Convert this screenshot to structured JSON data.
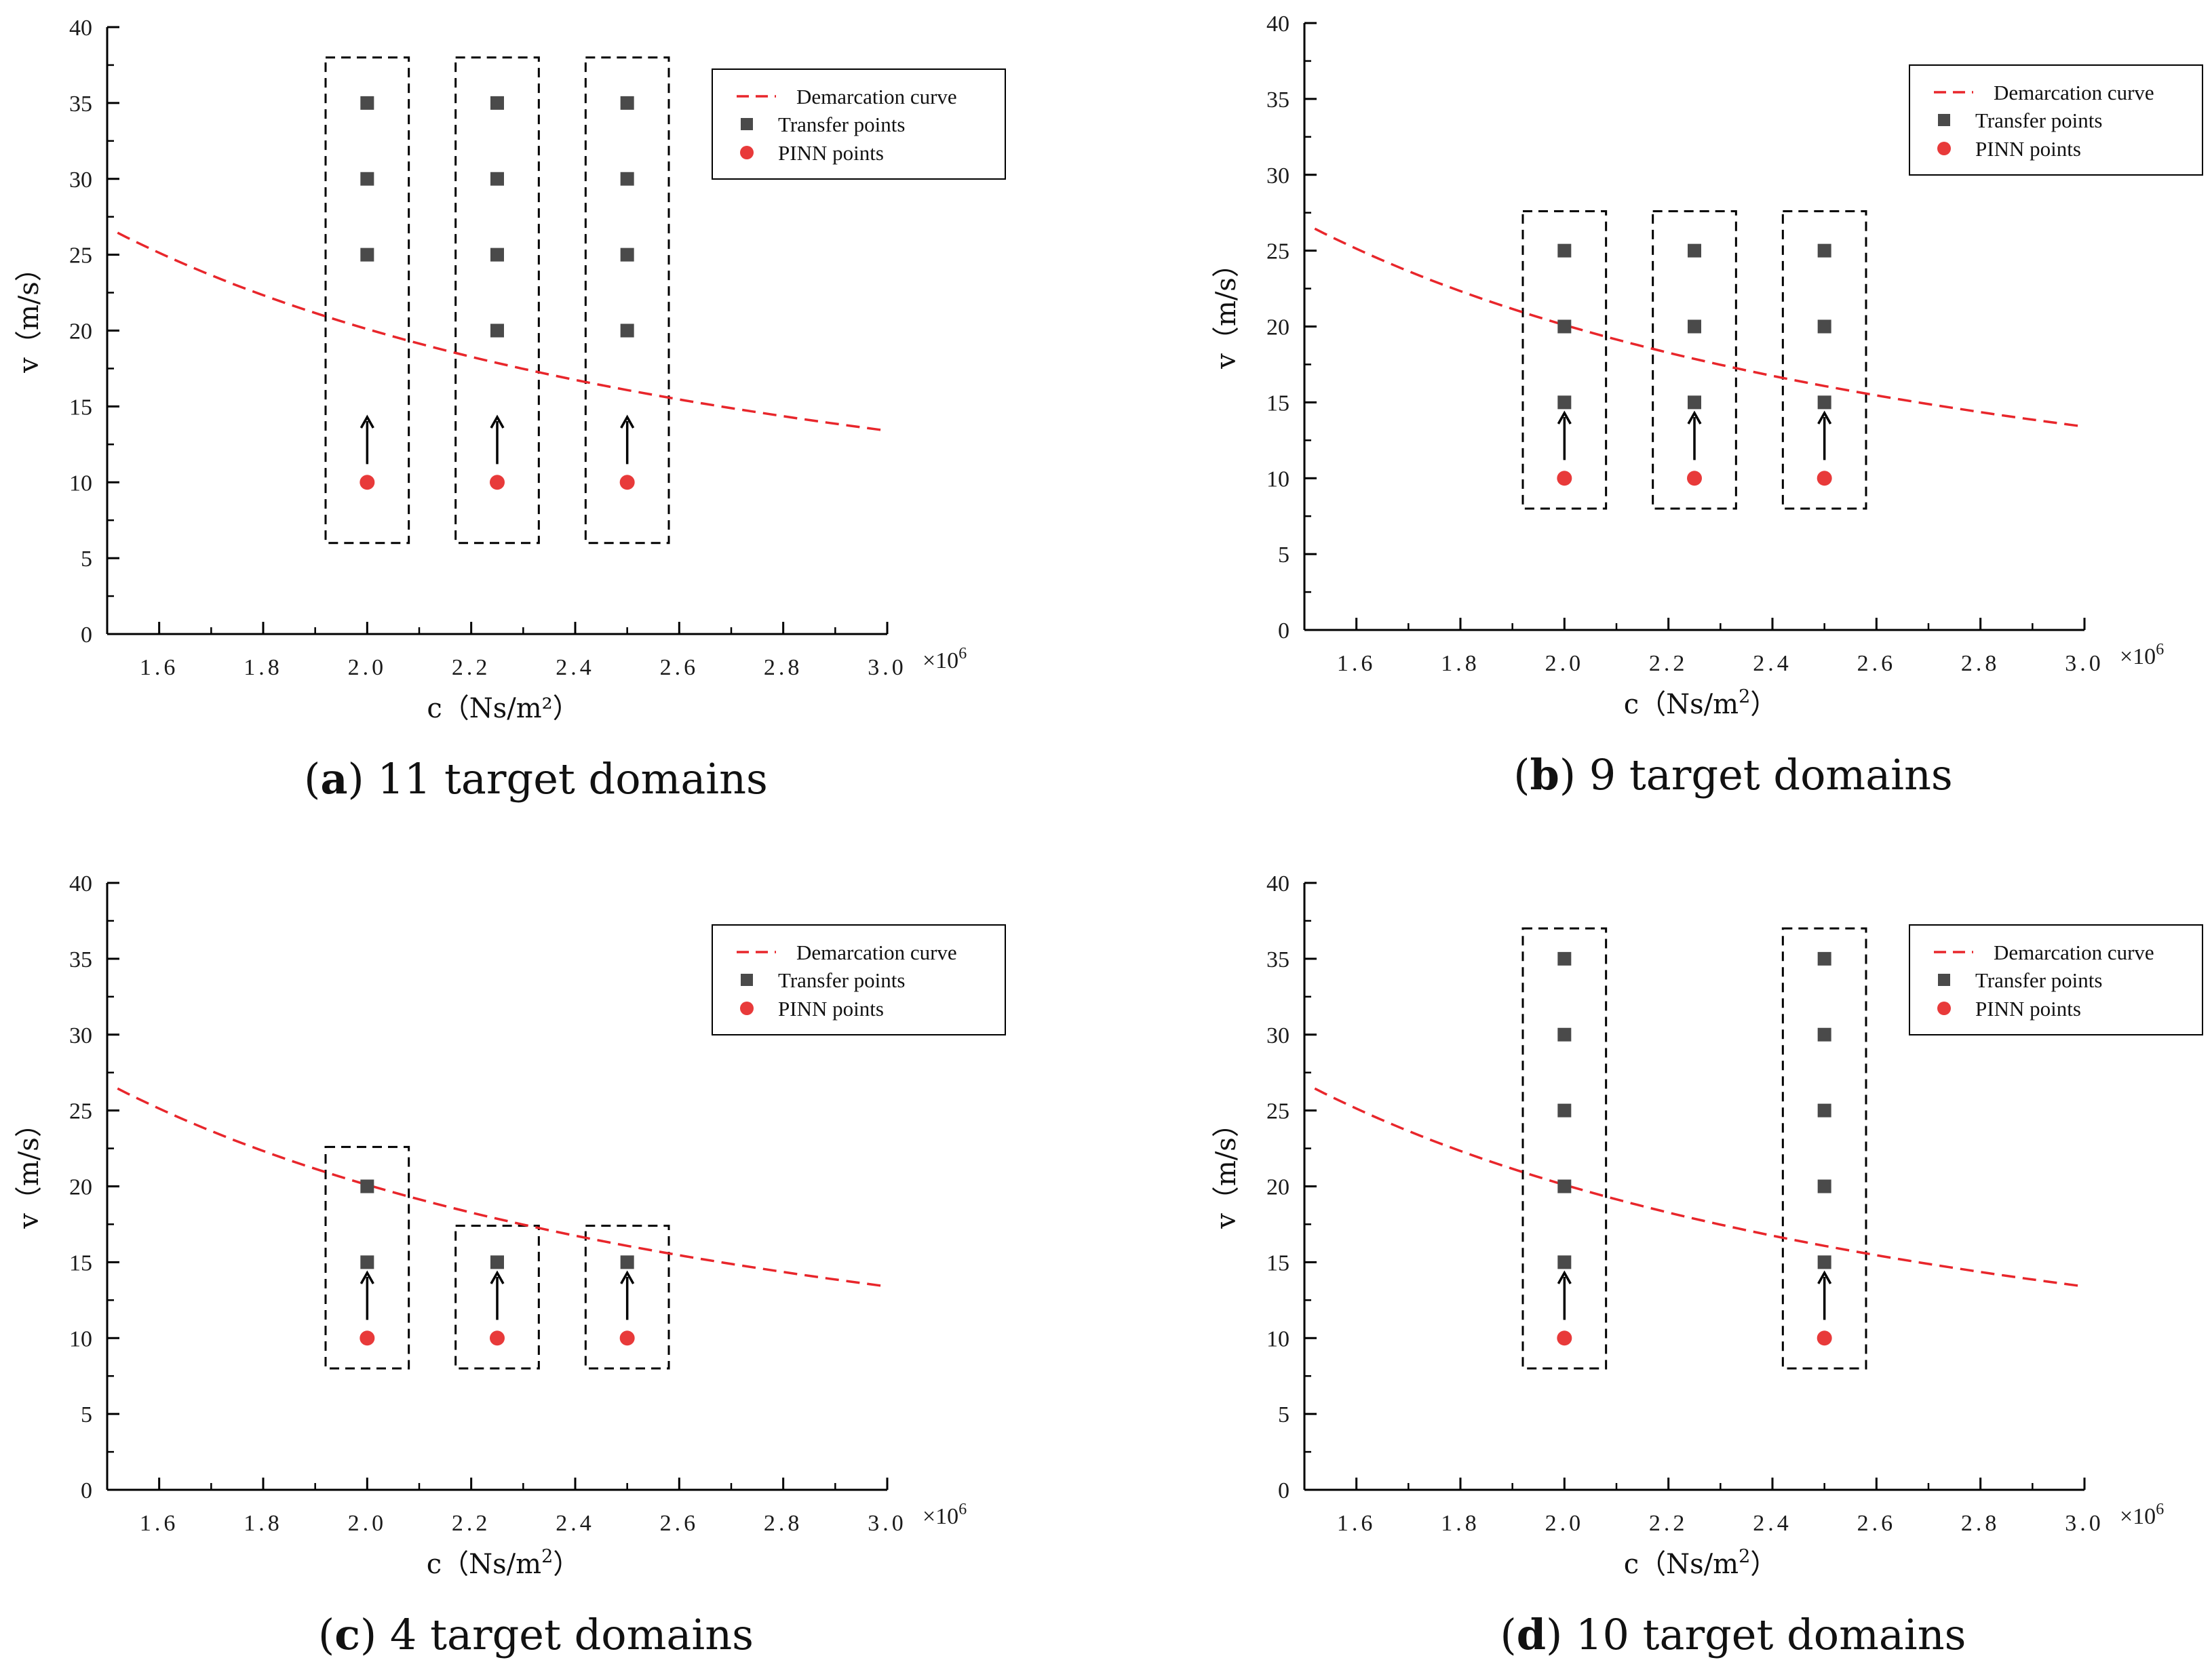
{
  "figure": {
    "panel_count": 4
  },
  "colors": {
    "curve": "#e8262b",
    "transfer_point": "#4a4a4a",
    "pinn_point": "#e83a3a",
    "axis": "#000000",
    "box": "#000000"
  },
  "legend_labels": {
    "curve": "Demarcation curve",
    "transfer": "Transfer points",
    "pinn": "PINN points"
  },
  "chart_data": [
    {
      "type": "scatter",
      "panel_id": "a",
      "caption": {
        "letter": "a",
        "text": "11 target domains"
      },
      "xlabel": "c (Ns/m²)",
      "xlabel_parts": {
        "text": "c（Ns/m²）",
        "sup": ""
      },
      "ylabel": "v (m/s)",
      "ylabel_text": "v（m/s）",
      "x_multiplier": {
        "base": "×10",
        "exp": "6"
      },
      "xlim": [
        1.5,
        3.0
      ],
      "ylim": [
        0,
        40
      ],
      "x_ticks": [
        1.6,
        1.8,
        2.0,
        2.2,
        2.4,
        2.6,
        2.8,
        3.0
      ],
      "x_tick_labels": [
        "1.6",
        "1.8",
        "2.0",
        "2.2",
        "2.4",
        "2.6",
        "2.8",
        "3.0"
      ],
      "y_ticks": [
        0,
        5,
        10,
        15,
        20,
        25,
        30,
        35,
        40
      ],
      "y_tick_labels": [
        "0",
        "5",
        "10",
        "15",
        "20",
        "25",
        "30",
        "35",
        "40"
      ],
      "legend_position": "top-right",
      "curve": {
        "name": "Demarcation curve",
        "k": 40.2,
        "x_range": [
          1.52,
          3.0
        ]
      },
      "transfer_points": [
        {
          "x": 2.0,
          "y": 35
        },
        {
          "x": 2.0,
          "y": 30
        },
        {
          "x": 2.0,
          "y": 25
        },
        {
          "x": 2.25,
          "y": 35
        },
        {
          "x": 2.25,
          "y": 30
        },
        {
          "x": 2.25,
          "y": 25
        },
        {
          "x": 2.25,
          "y": 20
        },
        {
          "x": 2.5,
          "y": 35
        },
        {
          "x": 2.5,
          "y": 30
        },
        {
          "x": 2.5,
          "y": 25
        },
        {
          "x": 2.5,
          "y": 20
        }
      ],
      "pinn_points": [
        {
          "x": 2.0,
          "y": 10
        },
        {
          "x": 2.25,
          "y": 10
        },
        {
          "x": 2.5,
          "y": 10
        }
      ],
      "arrows": [
        {
          "x": 2.0,
          "from": 11.2,
          "to": 14.3
        },
        {
          "x": 2.25,
          "from": 11.2,
          "to": 14.3
        },
        {
          "x": 2.5,
          "from": 11.2,
          "to": 14.3
        }
      ],
      "boxes": [
        {
          "x0": 1.92,
          "x1": 2.08,
          "y0": 6,
          "y1": 38
        },
        {
          "x0": 2.17,
          "x1": 2.33,
          "y0": 6,
          "y1": 38
        },
        {
          "x0": 2.42,
          "x1": 2.58,
          "y0": 6,
          "y1": 38
        }
      ]
    },
    {
      "type": "scatter",
      "panel_id": "b",
      "caption": {
        "letter": "b",
        "text": "9 target domains"
      },
      "xlabel": "c (Ns/m2)",
      "xlabel_parts": {
        "text": "c（Ns/m",
        "sup": "2",
        "close": "）"
      },
      "ylabel": "v (m/s)",
      "ylabel_text": "v（m/s）",
      "x_multiplier": {
        "base": "×10",
        "exp": "6"
      },
      "xlim": [
        1.5,
        3.0
      ],
      "ylim": [
        0,
        40
      ],
      "x_ticks": [
        1.6,
        1.8,
        2.0,
        2.2,
        2.4,
        2.6,
        2.8,
        3.0
      ],
      "x_tick_labels": [
        "1.6",
        "1.8",
        "2.0",
        "2.2",
        "2.4",
        "2.6",
        "2.8",
        "3.0"
      ],
      "y_ticks": [
        0,
        5,
        10,
        15,
        20,
        25,
        30,
        35,
        40
      ],
      "y_tick_labels": [
        "0",
        "5",
        "10",
        "15",
        "20",
        "25",
        "30",
        "35",
        "40"
      ],
      "legend_position": "top-right",
      "curve": {
        "name": "Demarcation curve",
        "k": 40.2,
        "x_range": [
          1.52,
          3.0
        ]
      },
      "transfer_points": [
        {
          "x": 2.0,
          "y": 25
        },
        {
          "x": 2.0,
          "y": 20
        },
        {
          "x": 2.0,
          "y": 15
        },
        {
          "x": 2.25,
          "y": 25
        },
        {
          "x": 2.25,
          "y": 20
        },
        {
          "x": 2.25,
          "y": 15
        },
        {
          "x": 2.5,
          "y": 25
        },
        {
          "x": 2.5,
          "y": 20
        },
        {
          "x": 2.5,
          "y": 15
        }
      ],
      "pinn_points": [
        {
          "x": 2.0,
          "y": 10
        },
        {
          "x": 2.25,
          "y": 10
        },
        {
          "x": 2.5,
          "y": 10
        }
      ],
      "arrows": [
        {
          "x": 2.0,
          "from": 11.2,
          "to": 14.3
        },
        {
          "x": 2.25,
          "from": 11.2,
          "to": 14.3
        },
        {
          "x": 2.5,
          "from": 11.2,
          "to": 14.3
        }
      ],
      "boxes": [
        {
          "x0": 1.92,
          "x1": 2.08,
          "y0": 8,
          "y1": 27.6
        },
        {
          "x0": 2.17,
          "x1": 2.33,
          "y0": 8,
          "y1": 27.6
        },
        {
          "x0": 2.42,
          "x1": 2.58,
          "y0": 8,
          "y1": 27.6
        }
      ]
    },
    {
      "type": "scatter",
      "panel_id": "c",
      "caption": {
        "letter": "c",
        "text": "4 target domains"
      },
      "xlabel": "c (Ns/m2)",
      "xlabel_parts": {
        "text": "c（Ns/m",
        "sup": "2",
        "close": "）"
      },
      "ylabel": "v (m/s)",
      "ylabel_text": "v（m/s）",
      "x_multiplier": {
        "base": "×10",
        "exp": "6"
      },
      "xlim": [
        1.5,
        3.0
      ],
      "ylim": [
        0,
        40
      ],
      "x_ticks": [
        1.6,
        1.8,
        2.0,
        2.2,
        2.4,
        2.6,
        2.8,
        3.0
      ],
      "x_tick_labels": [
        "1.6",
        "1.8",
        "2.0",
        "2.2",
        "2.4",
        "2.6",
        "2.8",
        "3.0"
      ],
      "y_ticks": [
        0,
        5,
        10,
        15,
        20,
        25,
        30,
        35,
        40
      ],
      "y_tick_labels": [
        "0",
        "5",
        "10",
        "15",
        "20",
        "25",
        "30",
        "35",
        "40"
      ],
      "legend_position": "top-right",
      "curve": {
        "name": "Demarcation curve",
        "k": 40.2,
        "x_range": [
          1.52,
          3.0
        ]
      },
      "transfer_points": [
        {
          "x": 2.0,
          "y": 20
        },
        {
          "x": 2.0,
          "y": 15
        },
        {
          "x": 2.25,
          "y": 15
        },
        {
          "x": 2.5,
          "y": 15
        }
      ],
      "pinn_points": [
        {
          "x": 2.0,
          "y": 10
        },
        {
          "x": 2.25,
          "y": 10
        },
        {
          "x": 2.5,
          "y": 10
        }
      ],
      "arrows": [
        {
          "x": 2.0,
          "from": 11.2,
          "to": 14.3
        },
        {
          "x": 2.25,
          "from": 11.2,
          "to": 14.3
        },
        {
          "x": 2.5,
          "from": 11.2,
          "to": 14.3
        }
      ],
      "boxes": [
        {
          "x0": 1.92,
          "x1": 2.08,
          "y0": 8,
          "y1": 22.6
        },
        {
          "x0": 2.17,
          "x1": 2.33,
          "y0": 8,
          "y1": 17.4
        },
        {
          "x0": 2.42,
          "x1": 2.58,
          "y0": 8,
          "y1": 17.4
        }
      ]
    },
    {
      "type": "scatter",
      "panel_id": "d",
      "caption": {
        "letter": "d",
        "text": "10 target domains"
      },
      "xlabel": "c (Ns/m2)",
      "xlabel_parts": {
        "text": "c（Ns/m",
        "sup": "2",
        "close": "）"
      },
      "ylabel": "v (m/s)",
      "ylabel_text": "v（m/s）",
      "x_multiplier": {
        "base": "×10",
        "exp": "6"
      },
      "xlim": [
        1.5,
        3.0
      ],
      "ylim": [
        0,
        40
      ],
      "x_ticks": [
        1.6,
        1.8,
        2.0,
        2.2,
        2.4,
        2.6,
        2.8,
        3.0
      ],
      "x_tick_labels": [
        "1.6",
        "1.8",
        "2.0",
        "2.2",
        "2.4",
        "2.6",
        "2.8",
        "3.0"
      ],
      "y_ticks": [
        0,
        5,
        10,
        15,
        20,
        25,
        30,
        35,
        40
      ],
      "y_tick_labels": [
        "0",
        "5",
        "10",
        "15",
        "20",
        "25",
        "30",
        "35",
        "40"
      ],
      "legend_position": "top-right",
      "curve": {
        "name": "Demarcation curve",
        "k": 40.2,
        "x_range": [
          1.52,
          3.0
        ]
      },
      "transfer_points": [
        {
          "x": 2.0,
          "y": 35
        },
        {
          "x": 2.0,
          "y": 30
        },
        {
          "x": 2.0,
          "y": 25
        },
        {
          "x": 2.0,
          "y": 20
        },
        {
          "x": 2.0,
          "y": 15
        },
        {
          "x": 2.5,
          "y": 35
        },
        {
          "x": 2.5,
          "y": 30
        },
        {
          "x": 2.5,
          "y": 25
        },
        {
          "x": 2.5,
          "y": 20
        },
        {
          "x": 2.5,
          "y": 15
        }
      ],
      "pinn_points": [
        {
          "x": 2.0,
          "y": 10
        },
        {
          "x": 2.5,
          "y": 10
        }
      ],
      "arrows": [
        {
          "x": 2.0,
          "from": 11.2,
          "to": 14.3
        },
        {
          "x": 2.5,
          "from": 11.2,
          "to": 14.3
        }
      ],
      "boxes": [
        {
          "x0": 1.92,
          "x1": 2.08,
          "y0": 8,
          "y1": 37
        },
        {
          "x0": 2.42,
          "x1": 2.58,
          "y0": 8,
          "y1": 37
        }
      ]
    }
  ]
}
